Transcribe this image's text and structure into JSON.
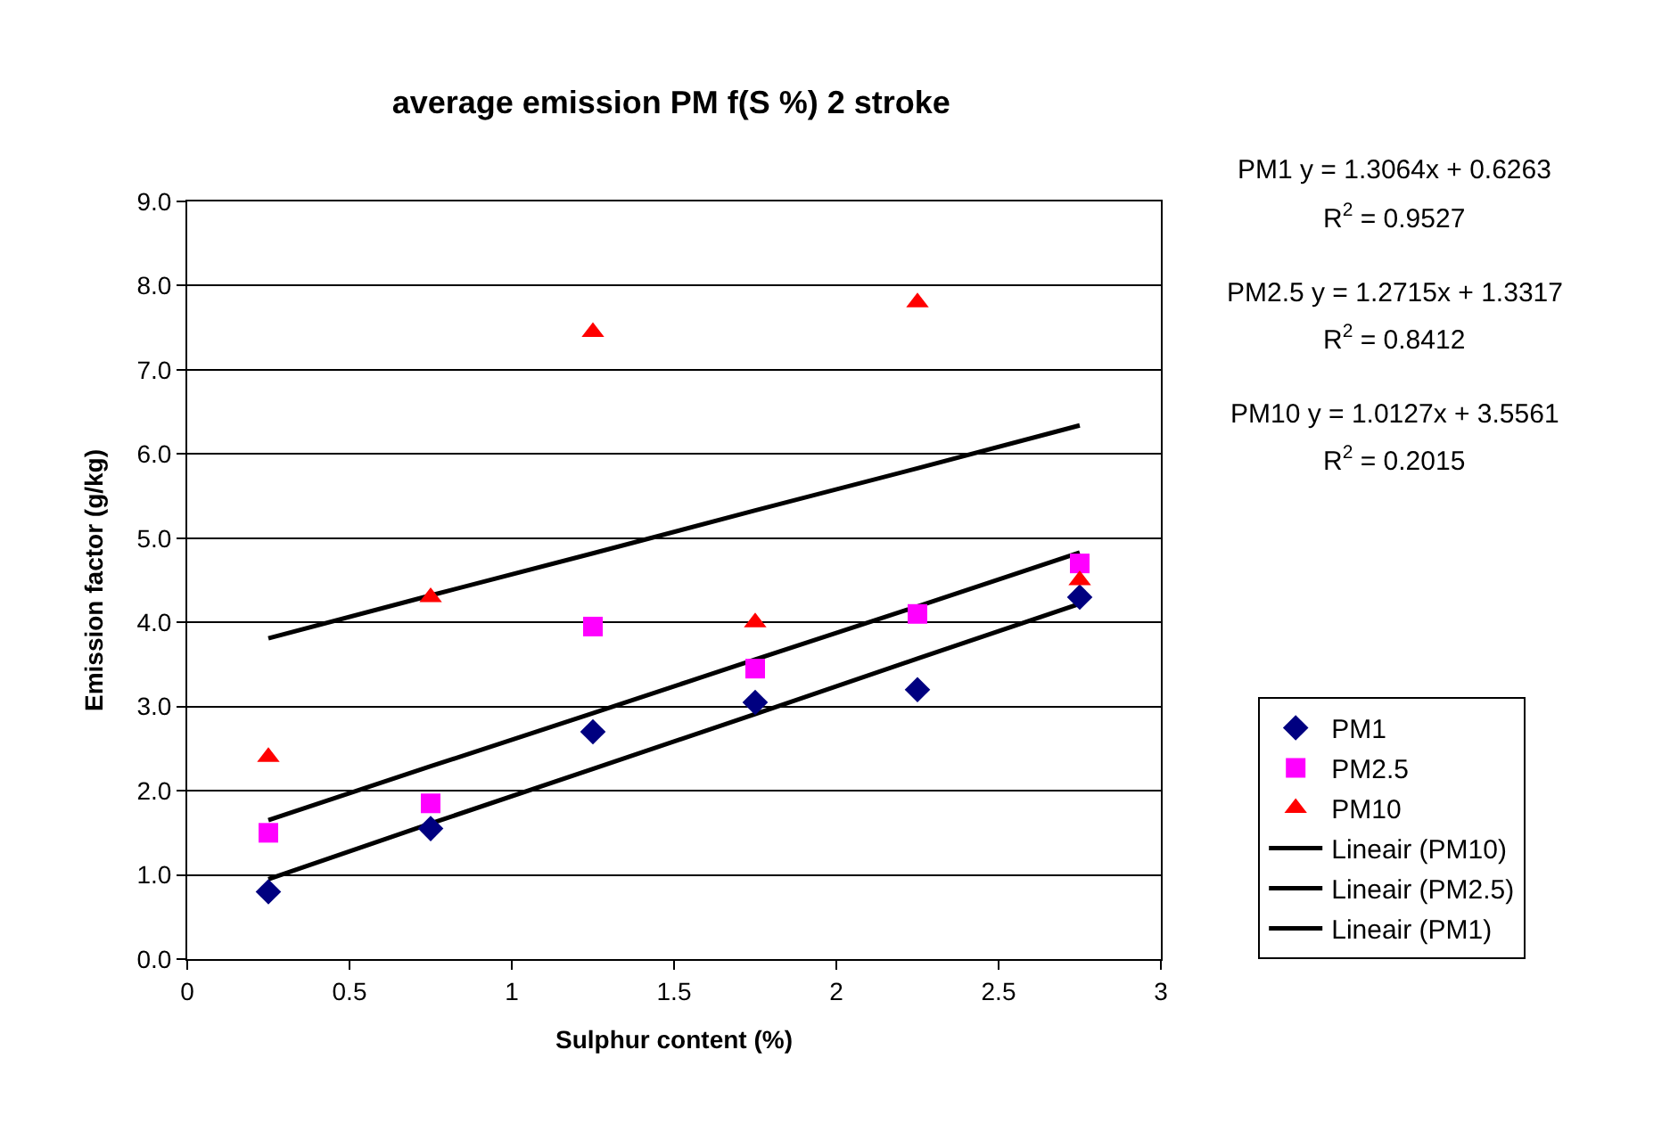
{
  "chart_data": {
    "type": "scatter",
    "title": "average emission PM f(S %) 2 stroke",
    "xlabel": "Sulphur content (%)",
    "ylabel": "Emission factor (g/kg)",
    "x": [
      0.25,
      0.75,
      1.25,
      1.75,
      2.25,
      2.75
    ],
    "series": [
      {
        "name": "PM1",
        "color": "#000080",
        "marker": "diamond",
        "values": [
          0.8,
          1.55,
          2.7,
          3.05,
          3.2,
          4.3
        ]
      },
      {
        "name": "PM2.5",
        "color": "#ff00ff",
        "marker": "square",
        "values": [
          1.5,
          1.85,
          3.95,
          3.45,
          4.1,
          4.7
        ]
      },
      {
        "name": "PM10",
        "color": "#ff0000",
        "marker": "triangle",
        "values": [
          2.4,
          4.3,
          7.45,
          4.0,
          7.8,
          4.5
        ]
      },
      {
        "name": "Lineair (PM10)",
        "type": "line",
        "color": "#000000",
        "marker": "none",
        "line_style": "solid",
        "values": [
          3.81,
          4.32,
          4.82,
          5.33,
          5.83,
          6.34
        ]
      },
      {
        "name": "Lineair (PM2.5)",
        "type": "line",
        "color": "#000000",
        "marker": "none",
        "line_style": "solid",
        "values": [
          1.65,
          2.29,
          2.92,
          3.56,
          4.19,
          4.83
        ]
      },
      {
        "name": "Lineair (PM1)",
        "type": "line",
        "color": "#000000",
        "marker": "none",
        "line_style": "solid",
        "values": [
          0.95,
          1.61,
          2.26,
          2.91,
          3.57,
          4.22
        ]
      }
    ],
    "xlim": [
      0,
      3
    ],
    "xticks": [
      0,
      0.5,
      1,
      1.5,
      2,
      2.5,
      3
    ],
    "ylim": [
      0,
      9
    ],
    "yticks": [
      {
        "value": 0,
        "label": "0.0"
      },
      {
        "value": 1,
        "label": "1.0"
      },
      {
        "value": 2,
        "label": "2.0"
      },
      {
        "value": 3,
        "label": "3.0"
      },
      {
        "value": 4,
        "label": "4.0"
      },
      {
        "value": 5,
        "label": "5.0"
      },
      {
        "value": 6,
        "label": "6.0"
      },
      {
        "value": 7,
        "label": "7.0"
      },
      {
        "value": 8,
        "label": "8.0"
      },
      {
        "value": 9,
        "label": "9.0"
      }
    ],
    "grid": "y",
    "legend": "bottom right",
    "annotations": [
      "PM1 y = 1.3064x + 0.6263",
      "R$^{2}$ = 0.9527",
      "PM2.5 y = 1.2715x + 1.3317",
      "R$^{2}$ = 0.8412",
      "PM10 y = 1.0127x + 3.5561",
      "R$^{2}$ = 0.2015"
    ]
  }
}
